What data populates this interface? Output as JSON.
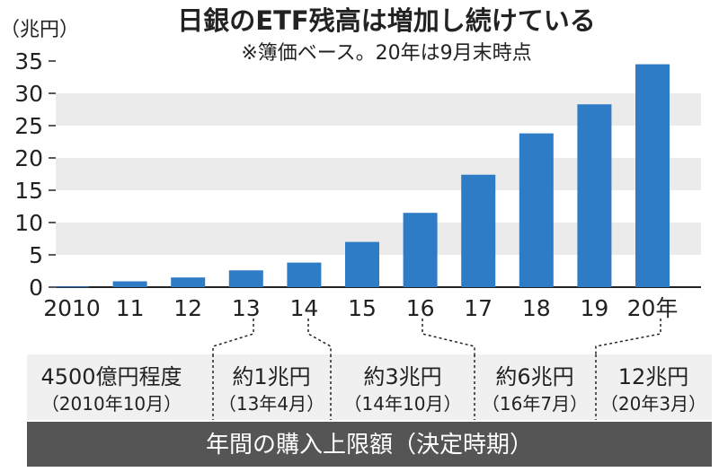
{
  "chart_data": {
    "type": "bar",
    "title": "日銀のETF残高は増加し続けている",
    "subtitle": "※簿価ベース。20年は9月末時点",
    "ylabel": "（兆円）",
    "ylim": [
      0,
      35
    ],
    "yticks": [
      0,
      5,
      10,
      15,
      20,
      25,
      30,
      35
    ],
    "categories": [
      "2010",
      "11",
      "12",
      "13",
      "14",
      "15",
      "16",
      "17",
      "18",
      "19",
      "20年"
    ],
    "values": [
      0.1,
      0.9,
      1.5,
      2.6,
      3.8,
      7.0,
      11.5,
      17.4,
      23.8,
      28.3,
      34.5
    ],
    "bar_color": "#2e7bc6",
    "grid": "alternating horizontal bands"
  },
  "purchase_limits": [
    {
      "amount": "4500億円程度",
      "date": "（2010年10月）"
    },
    {
      "amount": "約1兆円",
      "date": "（13年4月）"
    },
    {
      "amount": "約3兆円",
      "date": "（14年10月）"
    },
    {
      "amount": "約6兆円",
      "date": "（16年7月）"
    },
    {
      "amount": "12兆円",
      "date": "（20年3月）"
    }
  ],
  "footer": {
    "label": "年間の購入上限額（決定時期）",
    "color": "#555555"
  },
  "colors": {
    "band": "#ebebeb",
    "box_bg": "#f0f0f0"
  }
}
